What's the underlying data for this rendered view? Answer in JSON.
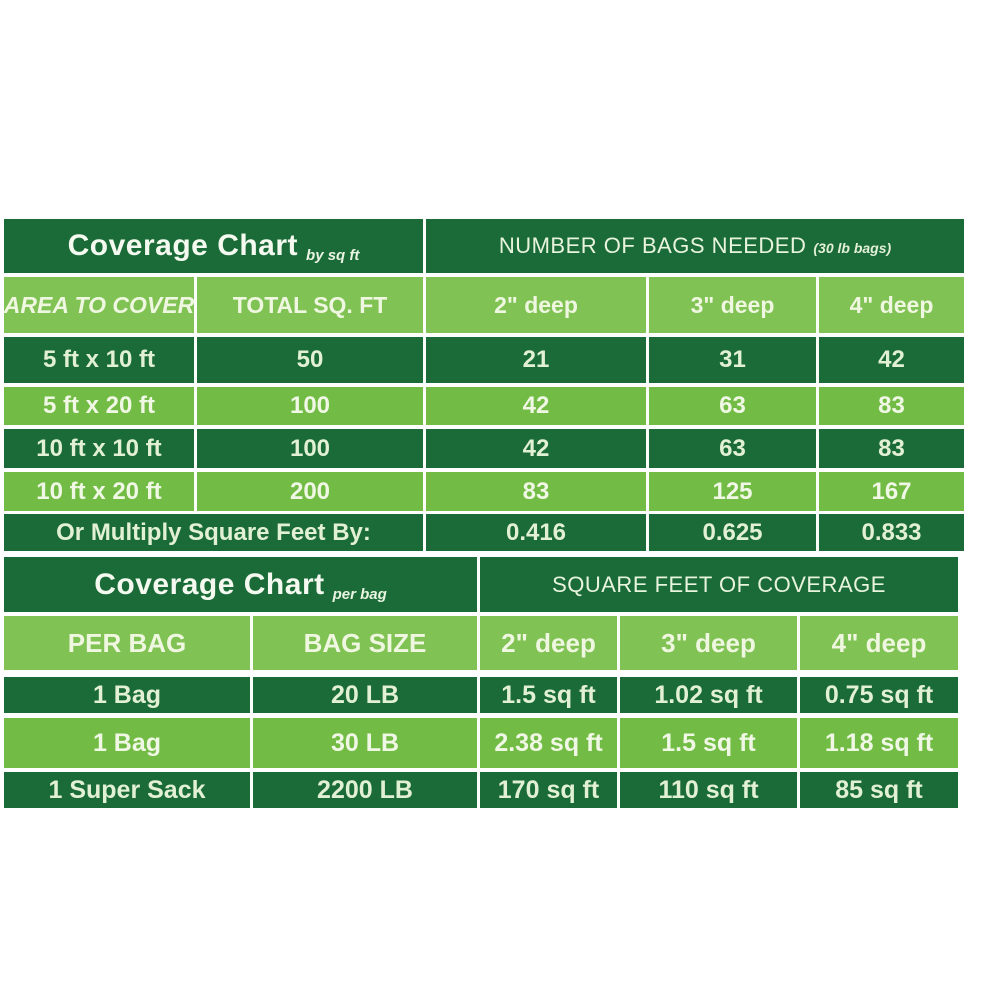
{
  "colors": {
    "page_background": "#ffffff",
    "dark_green": "#1b6b39",
    "light_green": "#72bc45",
    "header_light_green": "#80c254",
    "divider": "#fbfdf8",
    "text_on_dark": "#e2f1d3",
    "text_on_light": "#f0f8e5",
    "title_text": "#f4faef"
  },
  "chart_data": [
    {
      "type": "table",
      "title": "Coverage Chart",
      "title_note": "by sq ft",
      "group_header": "NUMBER OF BAGS NEEDED",
      "group_header_note": "(30 lb bags)",
      "columns": [
        "AREA TO COVER",
        "TOTAL SQ. FT",
        "2\" deep",
        "3\" deep",
        "4\" deep"
      ],
      "rows": [
        [
          "5 ft x 10 ft",
          "50",
          "21",
          "31",
          "42"
        ],
        [
          "5 ft x 20 ft",
          "100",
          "42",
          "63",
          "83"
        ],
        [
          "10 ft x 10 ft",
          "100",
          "42",
          "63",
          "83"
        ],
        [
          "10 ft x 20 ft",
          "200",
          "83",
          "125",
          "167"
        ]
      ],
      "footer_label": "Or Multiply Square Feet By:",
      "footer_values": [
        "0.416",
        "0.625",
        "0.833"
      ]
    },
    {
      "type": "table",
      "title": "Coverage Chart",
      "title_note": "per bag",
      "group_header": "SQUARE FEET OF COVERAGE",
      "columns": [
        "PER BAG",
        "BAG SIZE",
        "2\" deep",
        "3\" deep",
        "4\" deep"
      ],
      "rows": [
        [
          "1 Bag",
          "20 LB",
          "1.5 sq ft",
          "1.02 sq ft",
          "0.75 sq ft"
        ],
        [
          "1 Bag",
          "30 LB",
          "2.38 sq ft",
          "1.5 sq ft",
          "1.18 sq ft"
        ],
        [
          "1 Super Sack",
          "2200 LB",
          "170 sq ft",
          "110 sq ft",
          "85 sq ft"
        ]
      ]
    }
  ]
}
